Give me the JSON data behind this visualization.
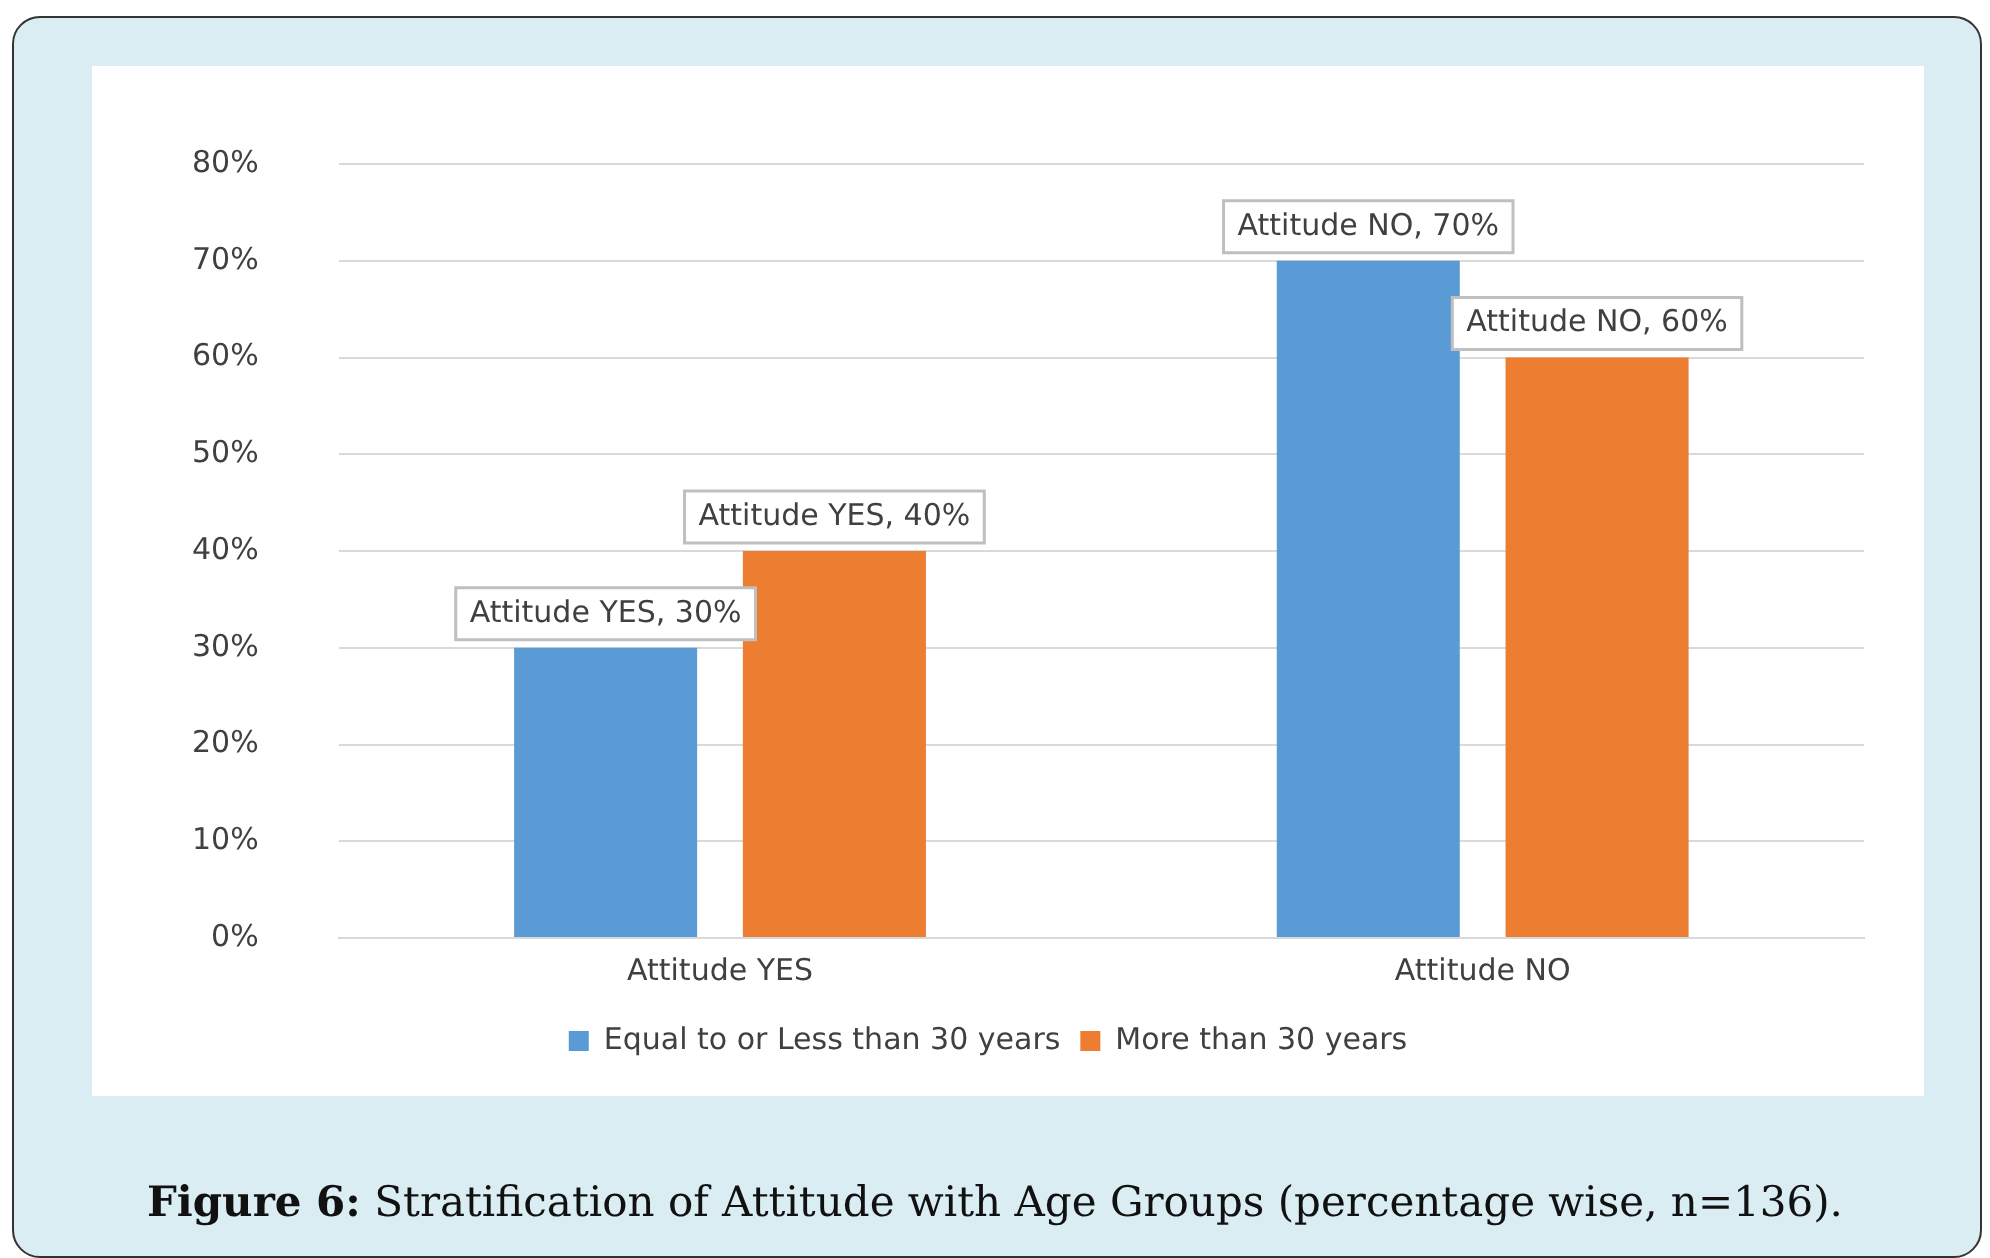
{
  "chart_data": {
    "type": "bar",
    "categories": [
      "Attitude YES",
      "Attitude NO"
    ],
    "series": [
      {
        "name": "Equal to or Less than 30 years",
        "color": "#5b9bd5",
        "values": [
          30,
          70
        ],
        "value_labels": [
          "Attitude YES, 30%",
          "Attitude NO, 70%"
        ]
      },
      {
        "name": "More than 30 years",
        "color": "#ed7d31",
        "values": [
          40,
          60
        ],
        "value_labels": [
          "Attitude YES, 40%",
          "Attitude NO, 60%"
        ]
      }
    ],
    "ylim": [
      0,
      80
    ],
    "yticks": [
      {
        "value": 0,
        "label": "0%"
      },
      {
        "value": 10,
        "label": "10%"
      },
      {
        "value": 20,
        "label": "20%"
      },
      {
        "value": 30,
        "label": "30%"
      },
      {
        "value": 40,
        "label": "40%"
      },
      {
        "value": 50,
        "label": "50%"
      },
      {
        "value": 60,
        "label": "60%"
      },
      {
        "value": 70,
        "label": "70%"
      },
      {
        "value": 80,
        "label": "80%"
      }
    ],
    "grid": "y",
    "legend": "bottom",
    "annotations": [
      "Figure 6: Stratification of Attitude with Age Groups (percentage wise, n=136)."
    ]
  }
}
